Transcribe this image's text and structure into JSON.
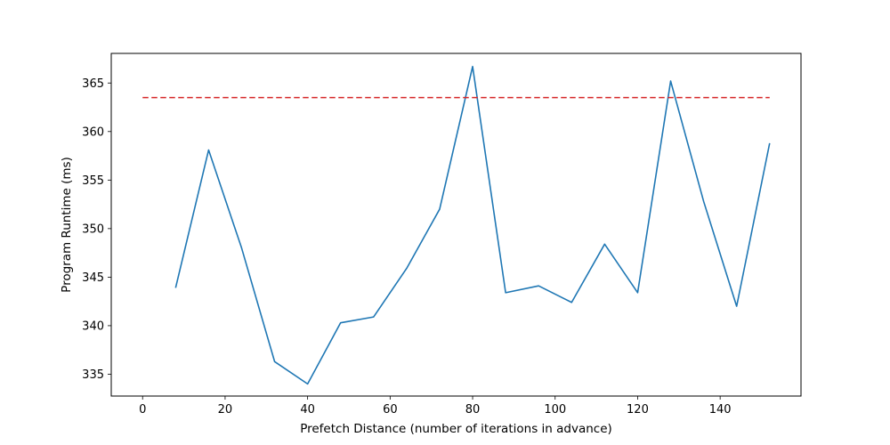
{
  "chart_data": {
    "type": "line",
    "title": "",
    "xlabel": "Prefetch Distance (number of iterations in advance)",
    "ylabel": "Program Runtime (ms)",
    "xlim": [
      -7.6,
      159.6
    ],
    "ylim": [
      332.75,
      368.05
    ],
    "xticks": [
      0,
      20,
      40,
      60,
      80,
      100,
      120,
      140
    ],
    "yticks": [
      335,
      340,
      345,
      350,
      355,
      360,
      365
    ],
    "grid": false,
    "series": [
      {
        "color": "#1f77b4",
        "linestyle": "solid",
        "x": [
          8,
          16,
          24,
          32,
          40,
          48,
          56,
          64,
          72,
          80,
          88,
          96,
          104,
          112,
          120,
          128,
          136,
          144,
          152
        ],
        "y": [
          343.9,
          358.1,
          348.0,
          336.3,
          334.0,
          340.3,
          340.9,
          345.9,
          352.0,
          366.7,
          343.4,
          344.1,
          342.4,
          348.4,
          343.4,
          365.2,
          352.8,
          342.0,
          358.8
        ]
      },
      {
        "color": "#d62728",
        "linestyle": "dashed",
        "x": [
          0,
          152
        ],
        "y": [
          363.5,
          363.5
        ]
      }
    ]
  }
}
